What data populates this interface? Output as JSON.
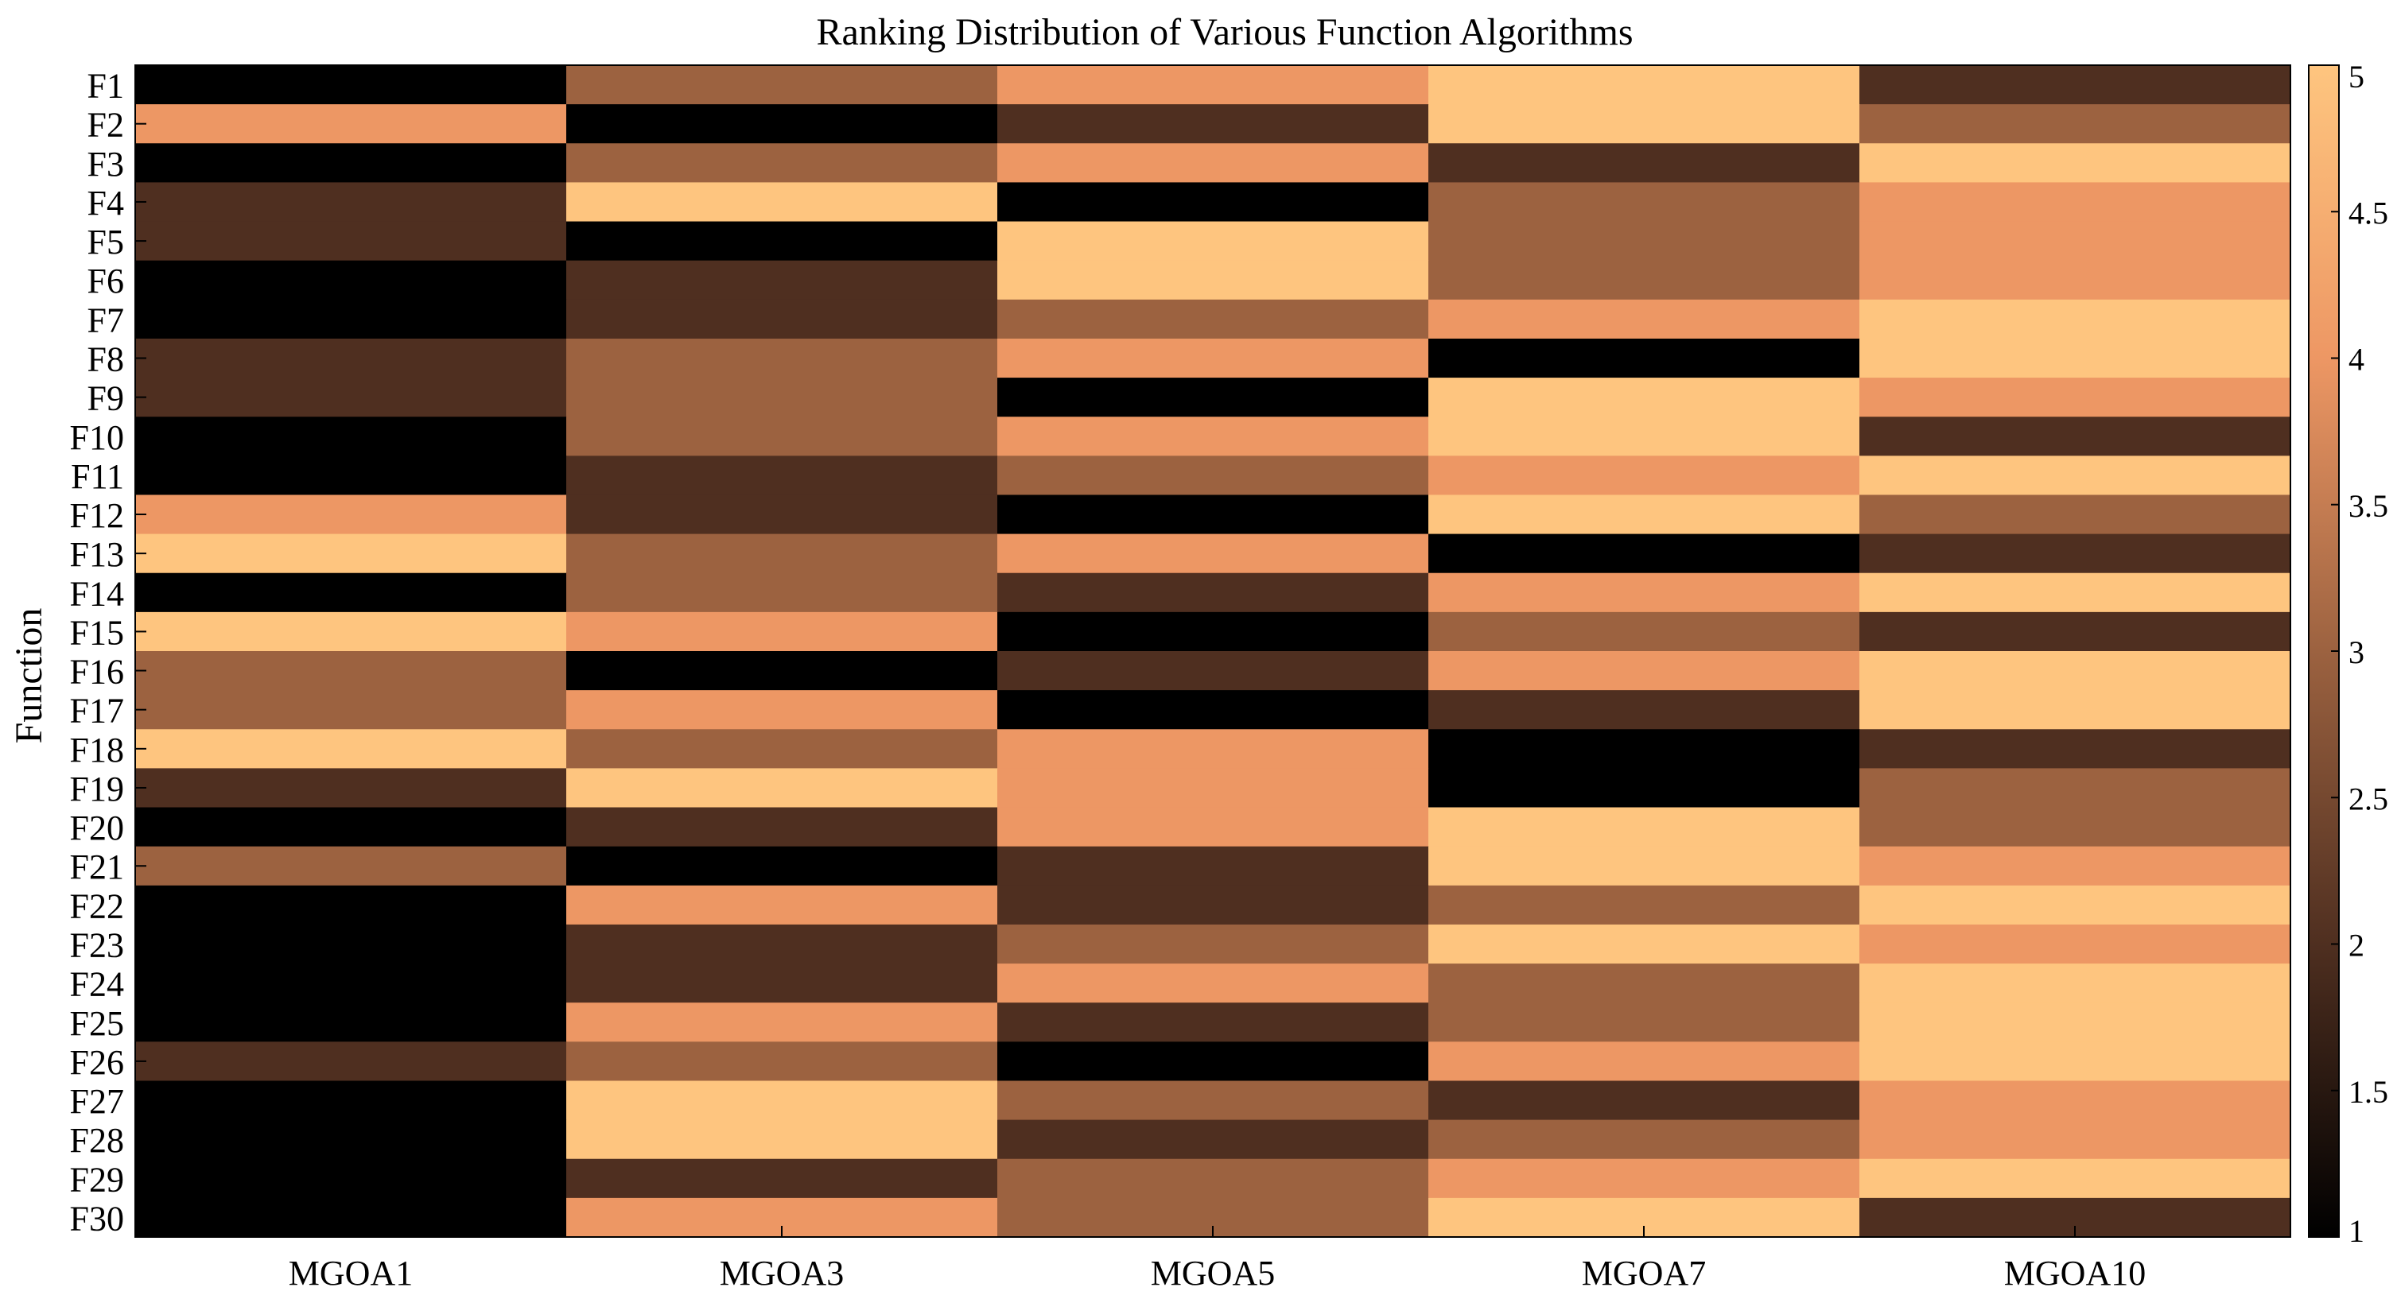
{
  "chart_data": {
    "type": "heatmap",
    "title": "Ranking Distribution of Various Function Algorithms",
    "xlabel": "",
    "ylabel": "Function",
    "columns": [
      "MGOA1",
      "MGOA3",
      "MGOA5",
      "MGOA7",
      "MGOA10"
    ],
    "rows": [
      "F1",
      "F2",
      "F3",
      "F4",
      "F5",
      "F6",
      "F7",
      "F8",
      "F9",
      "F10",
      "F11",
      "F12",
      "F13",
      "F14",
      "F15",
      "F16",
      "F17",
      "F18",
      "F19",
      "F20",
      "F21",
      "F22",
      "F23",
      "F24",
      "F25",
      "F26",
      "F27",
      "F28",
      "F29",
      "F30"
    ],
    "values": [
      [
        1,
        3,
        4,
        5,
        2
      ],
      [
        4,
        1,
        2,
        5,
        3
      ],
      [
        1,
        3,
        4,
        2,
        5
      ],
      [
        2,
        5,
        1,
        3,
        4
      ],
      [
        2,
        1,
        5,
        3,
        4
      ],
      [
        1,
        2,
        5,
        3,
        4
      ],
      [
        1,
        2,
        3,
        4,
        5
      ],
      [
        2,
        3,
        4,
        1,
        5
      ],
      [
        2,
        3,
        1,
        5,
        4
      ],
      [
        1,
        3,
        4,
        5,
        2
      ],
      [
        1,
        2,
        3,
        4,
        5
      ],
      [
        4,
        2,
        1,
        5,
        3
      ],
      [
        5,
        3,
        4,
        1,
        2
      ],
      [
        1,
        3,
        2,
        4,
        5
      ],
      [
        5,
        4,
        1,
        3,
        2
      ],
      [
        3,
        1,
        2,
        4,
        5
      ],
      [
        3,
        4,
        1,
        2,
        5
      ],
      [
        5,
        3,
        4,
        1,
        2
      ],
      [
        2,
        5,
        4,
        1,
        3
      ],
      [
        1,
        2,
        4,
        5,
        3
      ],
      [
        3,
        1,
        2,
        5,
        4
      ],
      [
        1,
        4,
        2,
        3,
        5
      ],
      [
        1,
        2,
        3,
        5,
        4
      ],
      [
        1,
        2,
        4,
        3,
        5
      ],
      [
        1,
        4,
        2,
        3,
        5
      ],
      [
        2,
        3,
        1,
        4,
        5
      ],
      [
        1,
        5,
        3,
        2,
        4
      ],
      [
        1,
        5,
        2,
        3,
        4
      ],
      [
        1,
        2,
        3,
        4,
        5
      ],
      [
        1,
        4,
        3,
        5,
        2
      ]
    ],
    "colorbar": {
      "range": [
        1,
        5
      ],
      "ticks": [
        "1",
        "1.5",
        "2",
        "2.5",
        "3",
        "3.5",
        "4",
        "4.5",
        "5"
      ],
      "colormap": [
        "#000000",
        "#4f2f20",
        "#9c6240",
        "#ed9764",
        "#fec57f"
      ]
    }
  }
}
